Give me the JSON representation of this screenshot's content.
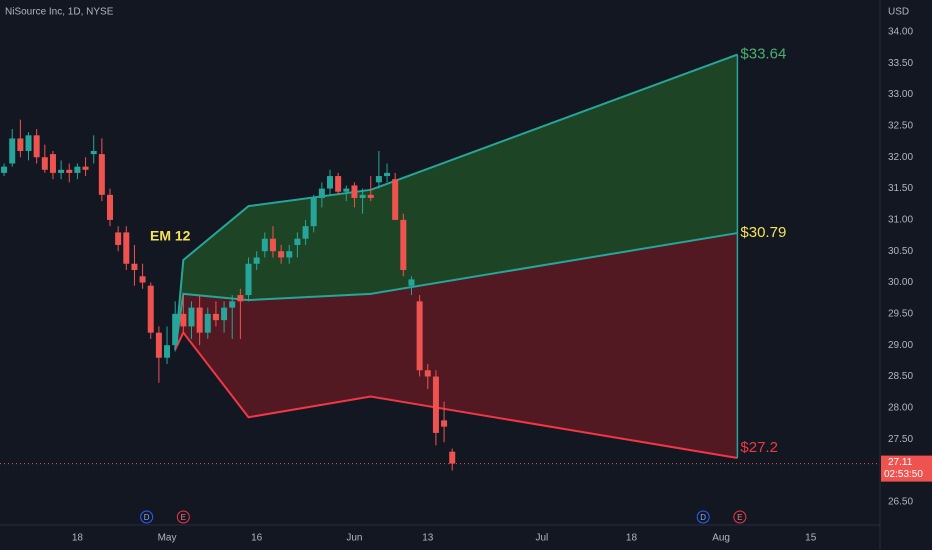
{
  "header": {
    "symbol": "NiSource Inc, 1D, NYSE",
    "currency": "USD"
  },
  "chart_data": {
    "type": "candlestick",
    "open": [
      31.75,
      31.9,
      32.3,
      32.1,
      32.35,
      32.0,
      32.05,
      31.75,
      31.8,
      31.75,
      31.85,
      32.05,
      32.05,
      31.4,
      30.8,
      30.8,
      30.3,
      30.1,
      29.95,
      29.2,
      28.8,
      29.0,
      29.5,
      29.3,
      29.6,
      29.2,
      29.5,
      29.4,
      29.6,
      29.8,
      29.8,
      30.3,
      30.5,
      30.7,
      30.5,
      30.4,
      30.6,
      30.7,
      30.9,
      31.35,
      31.5,
      31.7,
      31.45,
      31.55,
      31.35,
      31.4,
      31.6,
      31.7,
      31.65,
      31.0,
      29.95,
      29.7,
      28.6,
      28.5,
      27.8,
      27.3
    ],
    "high": [
      31.9,
      32.45,
      32.6,
      32.4,
      32.45,
      32.2,
      32.1,
      31.95,
      31.9,
      31.9,
      32.0,
      32.35,
      32.3,
      31.5,
      30.9,
      30.9,
      30.6,
      30.3,
      30.0,
      29.3,
      29.3,
      29.7,
      29.8,
      29.7,
      29.8,
      29.6,
      29.7,
      29.7,
      29.8,
      29.9,
      30.4,
      30.5,
      30.8,
      30.9,
      30.6,
      30.6,
      30.8,
      31.0,
      31.4,
      31.6,
      31.8,
      31.75,
      31.55,
      31.6,
      31.5,
      31.7,
      32.1,
      31.9,
      31.75,
      31.1,
      30.1,
      29.8,
      28.7,
      28.6,
      28.1,
      27.35
    ],
    "low": [
      31.7,
      31.85,
      32.0,
      31.95,
      31.9,
      31.75,
      31.65,
      31.65,
      31.6,
      31.65,
      31.7,
      31.9,
      31.3,
      30.9,
      30.5,
      30.2,
      29.95,
      29.9,
      29.1,
      28.4,
      28.7,
      28.9,
      29.2,
      29.1,
      29.0,
      29.1,
      29.3,
      29.2,
      29.1,
      29.1,
      29.7,
      30.2,
      30.4,
      30.4,
      30.3,
      30.3,
      30.4,
      30.6,
      30.8,
      31.2,
      31.4,
      31.4,
      31.3,
      31.2,
      31.1,
      31.3,
      31.5,
      31.6,
      31.0,
      30.1,
      29.8,
      28.5,
      28.3,
      27.4,
      27.45,
      27.0
    ],
    "close": [
      31.85,
      32.3,
      32.1,
      32.35,
      32.0,
      31.8,
      31.75,
      31.8,
      31.75,
      31.85,
      31.8,
      32.1,
      31.4,
      31.0,
      30.6,
      30.3,
      30.2,
      30.0,
      29.2,
      28.8,
      29.0,
      29.5,
      29.3,
      29.6,
      29.2,
      29.5,
      29.4,
      29.6,
      29.7,
      29.7,
      30.3,
      30.4,
      30.7,
      30.5,
      30.4,
      30.5,
      30.7,
      30.9,
      31.35,
      31.5,
      31.7,
      31.45,
      31.5,
      31.35,
      31.4,
      31.35,
      31.7,
      31.75,
      31.0,
      30.2,
      30.05,
      28.6,
      28.5,
      27.6,
      27.7,
      27.11
    ],
    "up_color": "#26a69a",
    "down_color": "#ef5350",
    "bands": {
      "x": [
        21,
        22,
        30,
        45,
        90
      ],
      "upper": [
        28.93,
        30.36,
        31.22,
        31.48,
        33.64
      ],
      "middle": [
        28.93,
        29.82,
        29.72,
        29.82,
        30.79
      ],
      "lower": [
        28.93,
        29.2,
        27.85,
        28.18,
        27.2
      ],
      "upper_label": "$33.64",
      "middle_label": "$30.79",
      "lower_label": "$27.2",
      "upper_color": "#26a69a",
      "middle_color": "#26a69a",
      "lower_color": "#f23645",
      "upper_fill": "#1f4a26",
      "lower_fill": "#5a1a22"
    },
    "annotation": "EM 12",
    "last_price": 27.11,
    "countdown": "02:53:50",
    "events": [
      {
        "x": 17.5,
        "label": "D"
      },
      {
        "x": 22,
        "label": "E"
      },
      {
        "x": 85.8,
        "label": "D"
      },
      {
        "x": 90.3,
        "label": "E"
      }
    ],
    "xlim": [
      -0.5,
      107.5
    ],
    "xticks": [
      {
        "value": 9,
        "label": "18"
      },
      {
        "value": 20,
        "label": "May"
      },
      {
        "value": 31,
        "label": "16"
      },
      {
        "value": 43,
        "label": "Jun"
      },
      {
        "value": 52,
        "label": "13"
      },
      {
        "value": 66,
        "label": "Jul"
      },
      {
        "value": 77,
        "label": "18"
      },
      {
        "value": 88,
        "label": "Aug"
      },
      {
        "value": 99,
        "label": "15"
      }
    ],
    "ylim": [
      26.13,
      34.51
    ],
    "yticks": [
      {
        "value": 26.5,
        "label": "26.50"
      },
      {
        "value": 27.5,
        "label": "27.50"
      },
      {
        "value": 28,
        "label": "28.00"
      },
      {
        "value": 28.5,
        "label": "28.50"
      },
      {
        "value": 29,
        "label": "29.00"
      },
      {
        "value": 29.5,
        "label": "29.50"
      },
      {
        "value": 30,
        "label": "30.00"
      },
      {
        "value": 30.5,
        "label": "30.50"
      },
      {
        "value": 31,
        "label": "31.00"
      },
      {
        "value": 31.5,
        "label": "31.50"
      },
      {
        "value": 32,
        "label": "32.00"
      },
      {
        "value": 32.5,
        "label": "32.50"
      },
      {
        "value": 33,
        "label": "33.00"
      },
      {
        "value": 33.5,
        "label": "33.50"
      },
      {
        "value": 34,
        "label": "34.00"
      }
    ],
    "grid": false
  }
}
